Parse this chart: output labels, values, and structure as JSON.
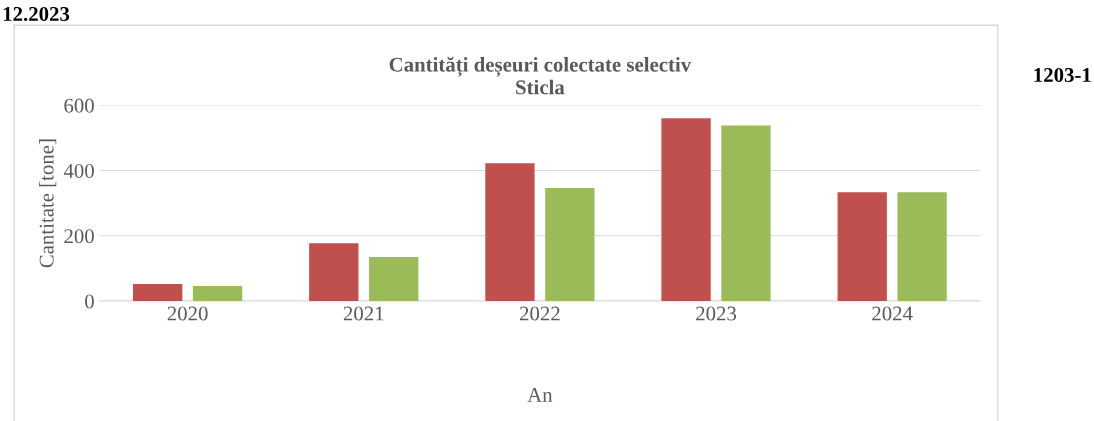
{
  "chart_data": {
    "type": "bar",
    "title": "Cantități deșeuri colectate selectiv\nSticla",
    "xlabel": "An",
    "ylabel": "Cantitate [tone]",
    "categories": [
      "2020",
      "2021",
      "2022",
      "2023",
      "2024"
    ],
    "series": [
      {
        "color": "#c0504d",
        "values": [
          52,
          177,
          422,
          560,
          333
        ]
      },
      {
        "color": "#9bbb59",
        "values": [
          46,
          135,
          346,
          538,
          333
        ]
      }
    ],
    "ylim": [
      0,
      600
    ],
    "yticks": [
      0,
      200,
      400,
      600
    ],
    "grid": "y",
    "annotations": [
      "12.2023",
      "1203-1"
    ]
  }
}
